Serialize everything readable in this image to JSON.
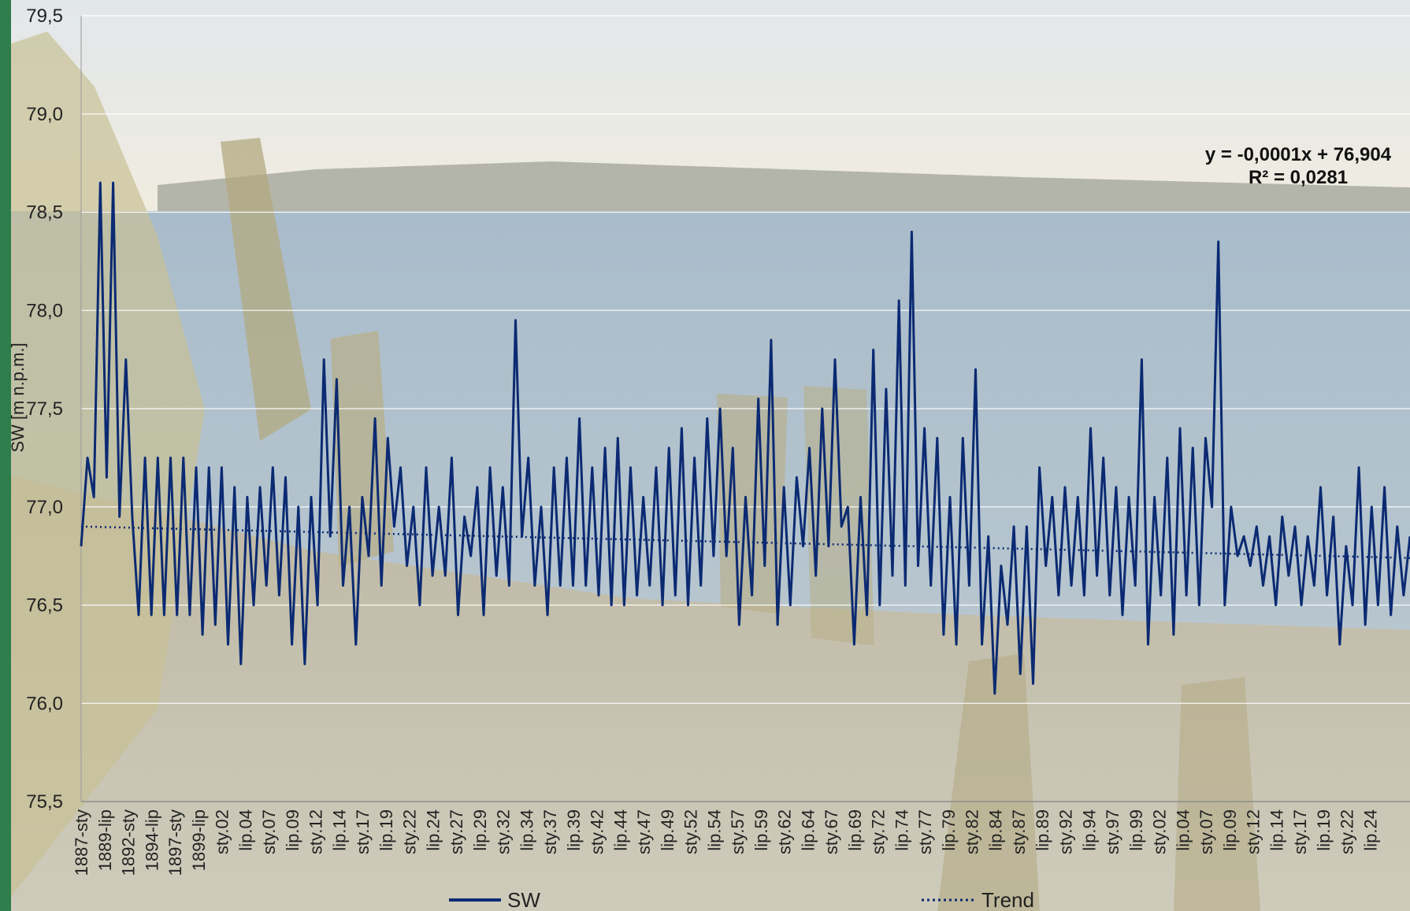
{
  "colors": {
    "series": "#0b2a72",
    "trend": "#0b2a72",
    "grid": "#ffffff",
    "sidebar": "#2e7d4a"
  },
  "chart_data": {
    "type": "line",
    "ylabel": "SW [m n.p.m.]",
    "ylim": [
      75.5,
      79.5
    ],
    "yticks": [
      "75,5",
      "76,0",
      "76,5",
      "77,0",
      "77,5",
      "78,0",
      "78,5",
      "79,0",
      "79,5"
    ],
    "grid": true,
    "legend_position": "bottom",
    "x_tick_labels": [
      "1887-sty",
      "1889-lip",
      "1892-sty",
      "1894-lip",
      "1897-sty",
      "1899-lip",
      "sty.02",
      "lip.04",
      "sty.07",
      "lip.09",
      "sty.12",
      "lip.14",
      "sty.17",
      "lip.19",
      "sty.22",
      "lip.24",
      "sty.27",
      "lip.29",
      "sty.32",
      "lip.34",
      "sty.37",
      "lip.39",
      "sty.42",
      "lip.44",
      "sty.47",
      "lip.49",
      "sty.52",
      "lip.54",
      "sty.57",
      "lip.59",
      "sty.62",
      "lip.64",
      "sty.67",
      "lip.69",
      "sty.72",
      "lip.74",
      "sty.77",
      "lip.79",
      "sty.82",
      "lip.84",
      "sty.87",
      "lip.89",
      "sty.92",
      "lip.94",
      "sty.97",
      "lip.99",
      "sty.02",
      "lip.04",
      "sty.07",
      "lip.09",
      "sty.12",
      "lip.14",
      "sty.17",
      "lip.19",
      "sty.22",
      "lip.24"
    ],
    "series": [
      {
        "name": "SW",
        "style": "solid",
        "values": [
          76.8,
          77.25,
          77.05,
          78.65,
          77.15,
          78.65,
          76.95,
          77.75,
          76.95,
          76.45,
          77.25,
          76.45,
          77.25,
          76.45,
          77.25,
          76.45,
          77.25,
          76.45,
          77.2,
          76.35,
          77.2,
          76.4,
          77.2,
          76.3,
          77.1,
          76.2,
          77.05,
          76.5,
          77.1,
          76.6,
          77.2,
          76.55,
          77.15,
          76.3,
          77.0,
          76.2,
          77.05,
          76.5,
          77.75,
          76.85,
          77.65,
          76.6,
          77.0,
          76.3,
          77.05,
          76.75,
          77.45,
          76.6,
          77.35,
          76.9,
          77.2,
          76.7,
          77.0,
          76.5,
          77.2,
          76.65,
          77.0,
          76.65,
          77.25,
          76.45,
          76.95,
          76.75,
          77.1,
          76.45,
          77.2,
          76.65,
          77.1,
          76.6,
          77.95,
          76.85,
          77.25,
          76.6,
          77.0,
          76.45,
          77.2,
          76.6,
          77.25,
          76.6,
          77.45,
          76.6,
          77.2,
          76.55,
          77.3,
          76.5,
          77.35,
          76.5,
          77.2,
          76.55,
          77.05,
          76.6,
          77.2,
          76.5,
          77.3,
          76.55,
          77.4,
          76.5,
          77.25,
          76.6,
          77.45,
          76.75,
          77.5,
          76.75,
          77.3,
          76.4,
          77.05,
          76.55,
          77.55,
          76.7,
          77.85,
          76.4,
          77.1,
          76.5,
          77.15,
          76.8,
          77.3,
          76.65,
          77.5,
          76.8,
          77.75,
          76.9,
          77.0,
          76.3,
          77.05,
          76.45,
          77.8,
          76.5,
          77.6,
          76.65,
          78.05,
          76.6,
          78.4,
          76.7,
          77.4,
          76.6,
          77.35,
          76.35,
          77.05,
          76.3,
          77.35,
          76.6,
          77.7,
          76.3,
          76.85,
          76.05,
          76.7,
          76.4,
          76.9,
          76.15,
          76.9,
          76.1,
          77.2,
          76.7,
          77.05,
          76.55,
          77.1,
          76.6,
          77.05,
          76.55,
          77.4,
          76.65,
          77.25,
          76.55,
          77.1,
          76.45,
          77.05,
          76.6,
          77.75,
          76.3,
          77.05,
          76.55,
          77.25,
          76.35,
          77.4,
          76.55,
          77.3,
          76.5,
          77.35,
          77.0,
          78.35,
          76.5,
          77.0,
          76.75,
          76.85,
          76.7,
          76.9,
          76.6,
          76.85,
          76.5,
          76.95,
          76.65,
          76.9,
          76.5,
          76.85,
          76.6,
          77.1,
          76.55,
          76.95,
          76.3,
          76.8,
          76.5,
          77.2,
          76.4,
          77.0,
          76.5,
          77.1,
          76.45,
          76.9,
          76.55,
          76.85
        ]
      },
      {
        "name": "Trend",
        "style": "dotted",
        "values": [
          76.9,
          76.74
        ]
      }
    ],
    "annotations": [
      "y = -0,0001x + 76,904",
      "R² = 0,0281"
    ]
  },
  "legend": {
    "sw": "SW",
    "trend": "Trend"
  }
}
